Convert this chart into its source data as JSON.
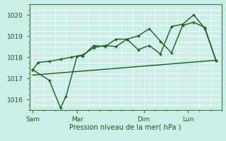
{
  "background_color": "#cceee8",
  "grid_color": "#ffffff",
  "line_color": "#1a5c1a",
  "xlabel": "Pression niveau de la mer( hPa )",
  "ylim": [
    1015.5,
    1020.5
  ],
  "yticks": [
    1016,
    1017,
    1018,
    1019,
    1020
  ],
  "day_labels": [
    "Sam",
    "Mar",
    "Dim",
    "Lun"
  ],
  "day_positions": [
    0,
    4,
    10,
    14
  ],
  "vline_positions": [
    0,
    4,
    10,
    14
  ],
  "xlim": [
    -0.3,
    17.0
  ],
  "trend_x": [
    0,
    16.5
  ],
  "trend_y": [
    1017.15,
    1017.85
  ],
  "series1_x": [
    0,
    0.5,
    1.5,
    2.5,
    3.5,
    4.5,
    5.5,
    6.5,
    7.5,
    8.5,
    9.5,
    10.5,
    11.5,
    12.5,
    13.5,
    14.5,
    15.5,
    16.5
  ],
  "series1_y": [
    1017.4,
    1017.75,
    1017.8,
    1017.9,
    1018.0,
    1018.1,
    1018.45,
    1018.55,
    1018.5,
    1018.85,
    1019.0,
    1019.35,
    1018.75,
    1018.2,
    1019.5,
    1019.65,
    1019.4,
    1017.85
  ],
  "series2_x": [
    0,
    1.5,
    2.5,
    3.0,
    4.0,
    4.5,
    5.5,
    6.5,
    7.5,
    8.5,
    9.5,
    10.5,
    11.5,
    12.5,
    13.5,
    14.5,
    15.5,
    16.5
  ],
  "series2_y": [
    1017.4,
    1016.9,
    1015.6,
    1016.15,
    1018.05,
    1018.05,
    1018.55,
    1018.5,
    1018.85,
    1018.85,
    1018.35,
    1018.55,
    1018.15,
    1019.45,
    1019.55,
    1020.0,
    1019.35,
    1017.85
  ]
}
